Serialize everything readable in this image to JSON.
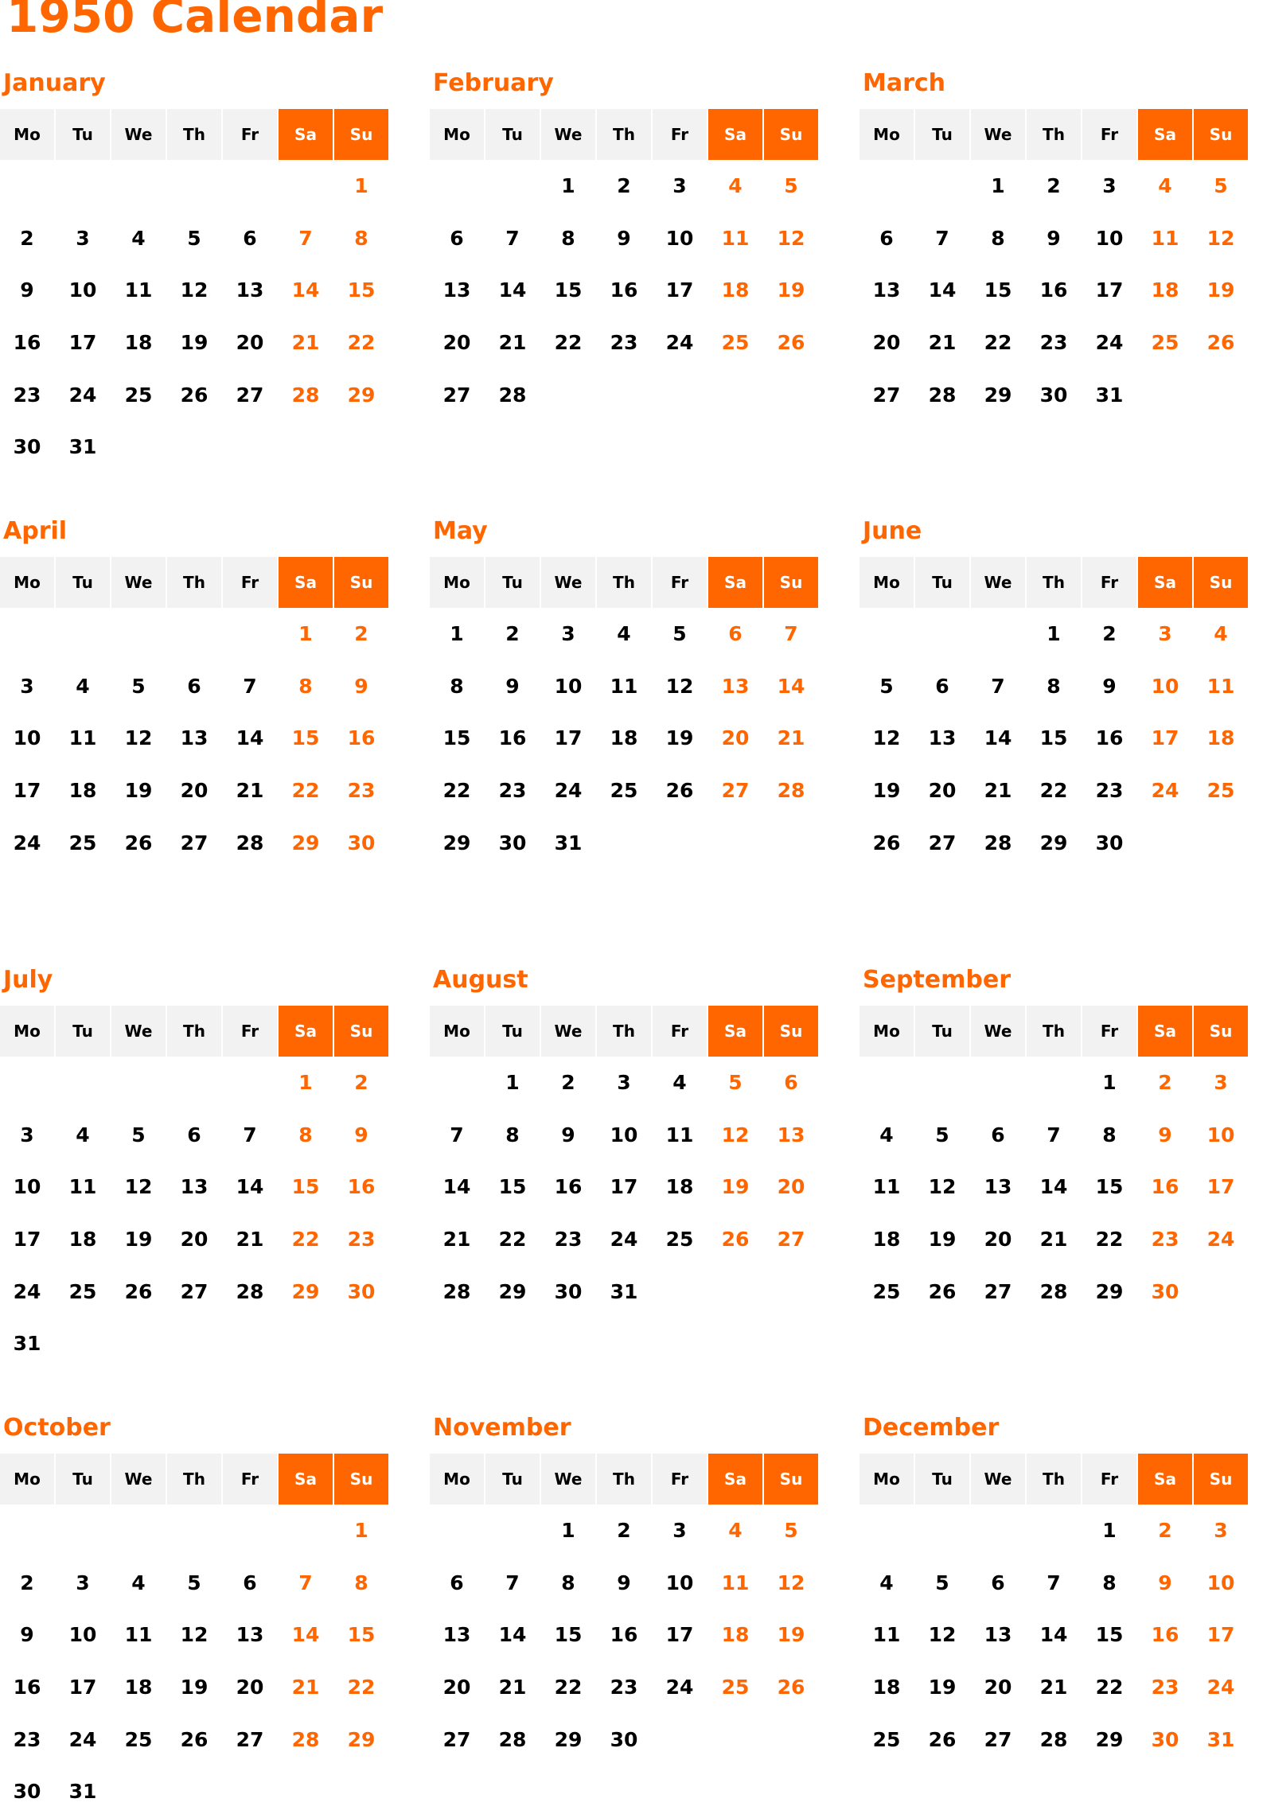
{
  "title": "1950 Calendar",
  "colors": {
    "accent": "#ff6600",
    "header_bg": "#f2f2f2",
    "text": "#000000"
  },
  "weekdays": [
    "Mo",
    "Tu",
    "We",
    "Th",
    "Fr",
    "Sa",
    "Su"
  ],
  "months": [
    {
      "name": "January",
      "weeks": [
        [
          "",
          "",
          "",
          "",
          "",
          "",
          "1"
        ],
        [
          "2",
          "3",
          "4",
          "5",
          "6",
          "7",
          "8"
        ],
        [
          "9",
          "10",
          "11",
          "12",
          "13",
          "14",
          "15"
        ],
        [
          "16",
          "17",
          "18",
          "19",
          "20",
          "21",
          "22"
        ],
        [
          "23",
          "24",
          "25",
          "26",
          "27",
          "28",
          "29"
        ],
        [
          "30",
          "31",
          "",
          "",
          "",
          "",
          ""
        ]
      ]
    },
    {
      "name": "February",
      "weeks": [
        [
          "",
          "",
          "1",
          "2",
          "3",
          "4",
          "5"
        ],
        [
          "6",
          "7",
          "8",
          "9",
          "10",
          "11",
          "12"
        ],
        [
          "13",
          "14",
          "15",
          "16",
          "17",
          "18",
          "19"
        ],
        [
          "20",
          "21",
          "22",
          "23",
          "24",
          "25",
          "26"
        ],
        [
          "27",
          "28",
          "",
          "",
          "",
          "",
          ""
        ]
      ]
    },
    {
      "name": "March",
      "weeks": [
        [
          "",
          "",
          "1",
          "2",
          "3",
          "4",
          "5"
        ],
        [
          "6",
          "7",
          "8",
          "9",
          "10",
          "11",
          "12"
        ],
        [
          "13",
          "14",
          "15",
          "16",
          "17",
          "18",
          "19"
        ],
        [
          "20",
          "21",
          "22",
          "23",
          "24",
          "25",
          "26"
        ],
        [
          "27",
          "28",
          "29",
          "30",
          "31",
          "",
          ""
        ]
      ]
    },
    {
      "name": "April",
      "weeks": [
        [
          "",
          "",
          "",
          "",
          "",
          "1",
          "2"
        ],
        [
          "3",
          "4",
          "5",
          "6",
          "7",
          "8",
          "9"
        ],
        [
          "10",
          "11",
          "12",
          "13",
          "14",
          "15",
          "16"
        ],
        [
          "17",
          "18",
          "19",
          "20",
          "21",
          "22",
          "23"
        ],
        [
          "24",
          "25",
          "26",
          "27",
          "28",
          "29",
          "30"
        ]
      ]
    },
    {
      "name": "May",
      "weeks": [
        [
          "1",
          "2",
          "3",
          "4",
          "5",
          "6",
          "7"
        ],
        [
          "8",
          "9",
          "10",
          "11",
          "12",
          "13",
          "14"
        ],
        [
          "15",
          "16",
          "17",
          "18",
          "19",
          "20",
          "21"
        ],
        [
          "22",
          "23",
          "24",
          "25",
          "26",
          "27",
          "28"
        ],
        [
          "29",
          "30",
          "31",
          "",
          "",
          "",
          ""
        ]
      ]
    },
    {
      "name": "June",
      "weeks": [
        [
          "",
          "",
          "",
          "1",
          "2",
          "3",
          "4"
        ],
        [
          "5",
          "6",
          "7",
          "8",
          "9",
          "10",
          "11"
        ],
        [
          "12",
          "13",
          "14",
          "15",
          "16",
          "17",
          "18"
        ],
        [
          "19",
          "20",
          "21",
          "22",
          "23",
          "24",
          "25"
        ],
        [
          "26",
          "27",
          "28",
          "29",
          "30",
          "",
          ""
        ]
      ]
    },
    {
      "name": "July",
      "weeks": [
        [
          "",
          "",
          "",
          "",
          "",
          "1",
          "2"
        ],
        [
          "3",
          "4",
          "5",
          "6",
          "7",
          "8",
          "9"
        ],
        [
          "10",
          "11",
          "12",
          "13",
          "14",
          "15",
          "16"
        ],
        [
          "17",
          "18",
          "19",
          "20",
          "21",
          "22",
          "23"
        ],
        [
          "24",
          "25",
          "26",
          "27",
          "28",
          "29",
          "30"
        ],
        [
          "31",
          "",
          "",
          "",
          "",
          "",
          ""
        ]
      ]
    },
    {
      "name": "August",
      "weeks": [
        [
          "",
          "1",
          "2",
          "3",
          "4",
          "5",
          "6"
        ],
        [
          "7",
          "8",
          "9",
          "10",
          "11",
          "12",
          "13"
        ],
        [
          "14",
          "15",
          "16",
          "17",
          "18",
          "19",
          "20"
        ],
        [
          "21",
          "22",
          "23",
          "24",
          "25",
          "26",
          "27"
        ],
        [
          "28",
          "29",
          "30",
          "31",
          "",
          "",
          ""
        ]
      ]
    },
    {
      "name": "September",
      "weeks": [
        [
          "",
          "",
          "",
          "",
          "1",
          "2",
          "3"
        ],
        [
          "4",
          "5",
          "6",
          "7",
          "8",
          "9",
          "10"
        ],
        [
          "11",
          "12",
          "13",
          "14",
          "15",
          "16",
          "17"
        ],
        [
          "18",
          "19",
          "20",
          "21",
          "22",
          "23",
          "24"
        ],
        [
          "25",
          "26",
          "27",
          "28",
          "29",
          "30",
          ""
        ]
      ]
    },
    {
      "name": "October",
      "weeks": [
        [
          "",
          "",
          "",
          "",
          "",
          "",
          "1"
        ],
        [
          "2",
          "3",
          "4",
          "5",
          "6",
          "7",
          "8"
        ],
        [
          "9",
          "10",
          "11",
          "12",
          "13",
          "14",
          "15"
        ],
        [
          "16",
          "17",
          "18",
          "19",
          "20",
          "21",
          "22"
        ],
        [
          "23",
          "24",
          "25",
          "26",
          "27",
          "28",
          "29"
        ],
        [
          "30",
          "31",
          "",
          "",
          "",
          "",
          ""
        ]
      ]
    },
    {
      "name": "November",
      "weeks": [
        [
          "",
          "",
          "1",
          "2",
          "3",
          "4",
          "5"
        ],
        [
          "6",
          "7",
          "8",
          "9",
          "10",
          "11",
          "12"
        ],
        [
          "13",
          "14",
          "15",
          "16",
          "17",
          "18",
          "19"
        ],
        [
          "20",
          "21",
          "22",
          "23",
          "24",
          "25",
          "26"
        ],
        [
          "27",
          "28",
          "29",
          "30",
          "",
          "",
          ""
        ]
      ]
    },
    {
      "name": "December",
      "weeks": [
        [
          "",
          "",
          "",
          "",
          "1",
          "2",
          "3"
        ],
        [
          "4",
          "5",
          "6",
          "7",
          "8",
          "9",
          "10"
        ],
        [
          "11",
          "12",
          "13",
          "14",
          "15",
          "16",
          "17"
        ],
        [
          "18",
          "19",
          "20",
          "21",
          "22",
          "23",
          "24"
        ],
        [
          "25",
          "26",
          "27",
          "28",
          "29",
          "30",
          "31"
        ]
      ]
    }
  ]
}
